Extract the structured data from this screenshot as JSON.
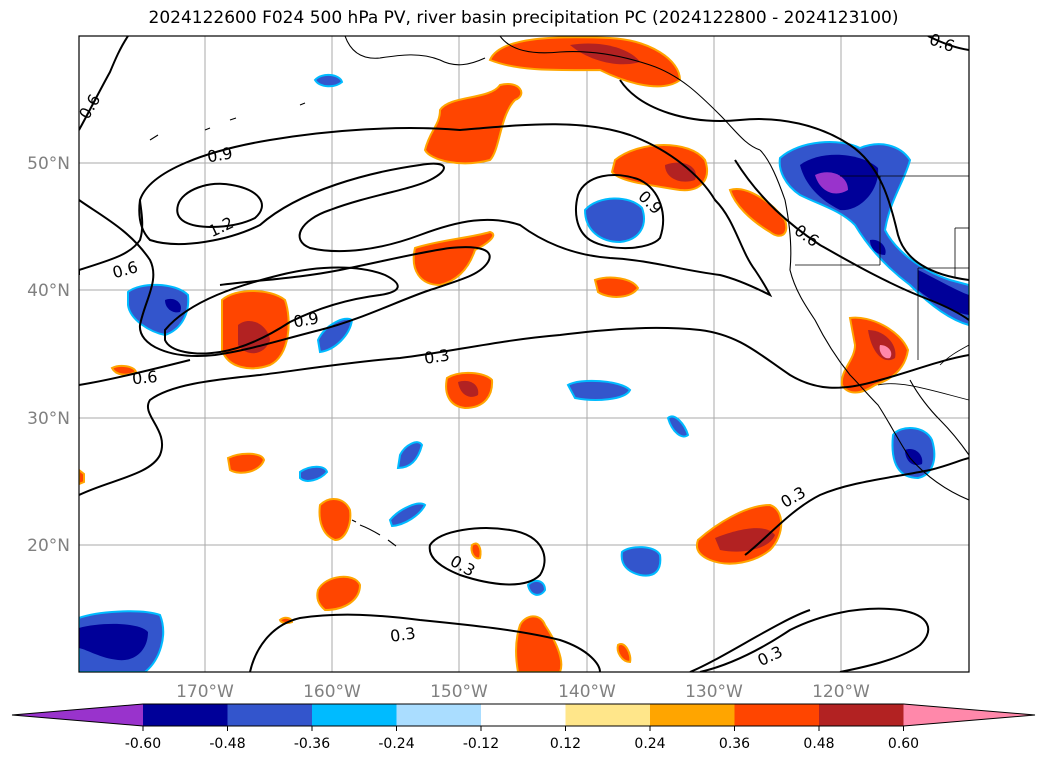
{
  "title": "2024122600 F024 500 hPa PV, river basin precipitation PC (2024122800 - 2024123100)",
  "lat_labels": [
    "50°N",
    "40°N",
    "30°N",
    "20°N"
  ],
  "lon_labels": [
    "170°W",
    "160°W",
    "150°W",
    "140°W",
    "130°W",
    "120°W"
  ],
  "contour_labels": [
    "0.6",
    "0.9",
    "1.2",
    "0.6",
    "0.9",
    "0.3",
    "0.6",
    "0.9",
    "0.6",
    "0.3",
    "0.3",
    "0.3",
    "0.3",
    "0.6"
  ],
  "colorbar": {
    "colors": [
      "#9933cc",
      "#000099",
      "#3355cc",
      "#00bbff",
      "#aaddff",
      "#ffffff",
      "#ffe68a",
      "#ffa500",
      "#ff4500",
      "#b22222",
      "#ff88aa"
    ],
    "ticks": [
      "-0.60",
      "-0.48",
      "-0.36",
      "-0.24",
      "-0.12",
      "0.12",
      "0.24",
      "0.36",
      "0.48",
      "0.60"
    ]
  },
  "map_colors": {
    "positive_strong": "#ff4500",
    "positive_max": "#b22222",
    "positive_edge": "#ffa500",
    "negative": "#3355cc",
    "negative_light": "#00bbff",
    "negative_strong": "#000099",
    "negative_max": "#9933cc",
    "grid": "#aaaaaa",
    "axis_label": "#808080"
  }
}
